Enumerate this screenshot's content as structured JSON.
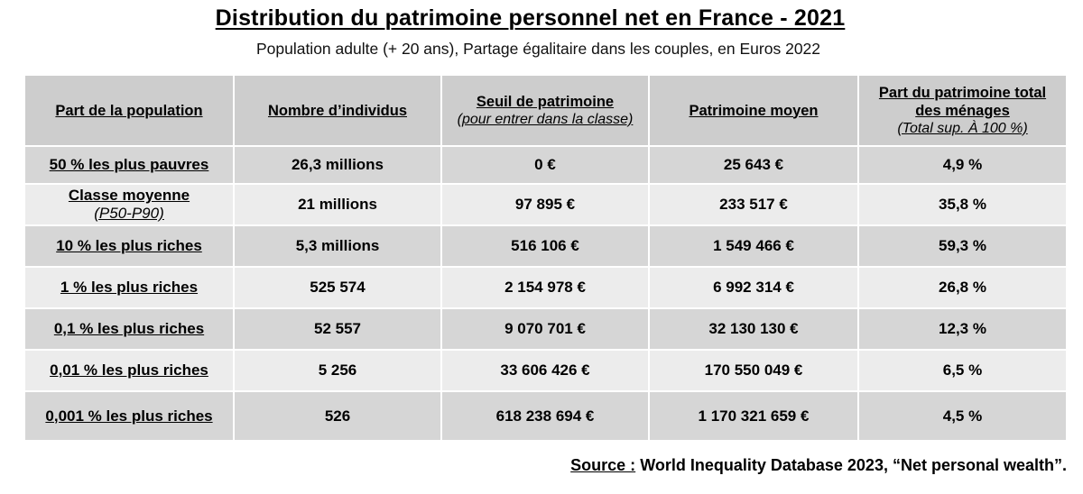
{
  "title": "Distribution du patrimoine personnel net en France - 2021",
  "subtitle": "Population adulte (+ 20 ans), Partage égalitaire dans les couples, en Euros 2022",
  "table": {
    "headers": [
      {
        "main": "Part de la population",
        "sub": ""
      },
      {
        "main": "Nombre d’individus",
        "sub": ""
      },
      {
        "main": "Seuil de patrimoine",
        "sub": "(pour entrer dans la classe)"
      },
      {
        "main": "Patrimoine moyen",
        "sub": ""
      },
      {
        "main": "Part du patrimoine total des ménages",
        "sub": "(Total sup. À 100 %)"
      }
    ],
    "rows": [
      {
        "label": "50 % les plus pauvres",
        "label_sub": "",
        "individus": "26,3 millions",
        "seuil": "0 €",
        "moyen": "25 643 €",
        "part": "4,9 %"
      },
      {
        "label": "Classe moyenne",
        "label_sub": "(P50-P90)",
        "individus": "21 millions",
        "seuil": "97 895 €",
        "moyen": "233 517 €",
        "part": "35,8 %"
      },
      {
        "label": "10 % les plus riches",
        "label_sub": "",
        "individus": "5,3 millions",
        "seuil": "516 106 €",
        "moyen": "1 549 466 €",
        "part": "59,3 %"
      },
      {
        "label": "1 % les plus riches",
        "label_sub": "",
        "individus": "525 574",
        "seuil": "2 154 978 €",
        "moyen": "6 992 314 €",
        "part": "26,8 %"
      },
      {
        "label": "0,1 % les plus riches",
        "label_sub": "",
        "individus": "52 557",
        "seuil": "9 070 701 €",
        "moyen": "32 130 130 €",
        "part": "12,3 %"
      },
      {
        "label": "0,01 % les plus riches",
        "label_sub": "",
        "individus": "5 256",
        "seuil": "33 606 426 €",
        "moyen": "170 550 049 €",
        "part": "6,5 %"
      },
      {
        "label": "0,001 % les plus riches",
        "label_sub": "",
        "individus": "526",
        "seuil": "618 238 694 €",
        "moyen": "1 170 321 659 €",
        "part": "4,5 %"
      }
    ]
  },
  "source": {
    "key": "Source :",
    "text": " World Inequality Database 2023, “Net personal wealth”."
  },
  "colors": {
    "header_bg": "#cdcdcd",
    "row_dark": "#d6d6d6",
    "row_light": "#ececec"
  }
}
